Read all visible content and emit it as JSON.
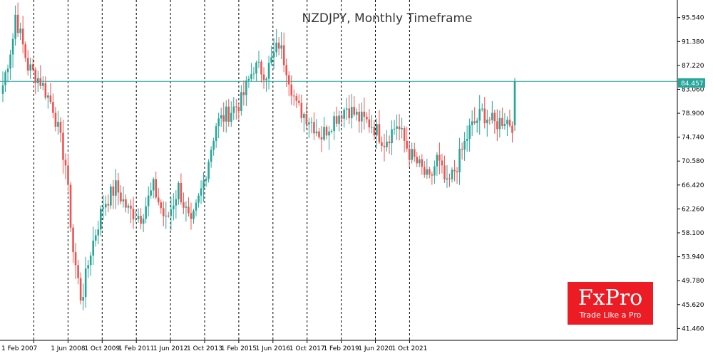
{
  "chart_data": {
    "type": "candlestick",
    "title": "NZDJPY, Monthly Timeframe",
    "xlabel": "",
    "ylabel": "",
    "ylim": [
      39.4,
      98.6
    ],
    "yticks": [
      "95.540",
      "91.380",
      "87.220",
      "83.060",
      "78.900",
      "74.740",
      "70.580",
      "66.420",
      "62.260",
      "58.100",
      "53.940",
      "49.780",
      "45.620",
      "41.460"
    ],
    "xticks": [
      "1 Feb 2007",
      "1 Jun 2008",
      "1 Oct 2009",
      "1 Feb 2011",
      "1 Jun 2012",
      "1 Oct 2013",
      "1 Feb 2015",
      "1 Jun 2016",
      "1 Oct 2017",
      "1 Feb 2019",
      "1 Jun 2020",
      "1 Oct 2021"
    ],
    "current_price": "84.457",
    "current_value": 84.457,
    "grid": "vertical dashed",
    "colors": {
      "up": "#26a69a",
      "down": "#ef5350",
      "level": "#26a69a"
    },
    "ohlc_key_points": [
      {
        "i": 0,
        "c": 83.8
      },
      {
        "i": 4,
        "c": 92.0
      },
      {
        "i": 5,
        "c": 96.0
      },
      {
        "i": 10,
        "c": 87.0
      },
      {
        "i": 15,
        "c": 84.5
      },
      {
        "i": 20,
        "c": 80.0
      },
      {
        "i": 25,
        "c": 70.0
      },
      {
        "i": 28,
        "c": 55.0
      },
      {
        "i": 31,
        "c": 47.0
      },
      {
        "i": 32,
        "c": 48.0
      },
      {
        "i": 35,
        "c": 55.0
      },
      {
        "i": 40,
        "c": 63.0
      },
      {
        "i": 45,
        "c": 66.0
      },
      {
        "i": 50,
        "c": 62.0
      },
      {
        "i": 55,
        "c": 61.0
      },
      {
        "i": 60,
        "c": 66.0
      },
      {
        "i": 65,
        "c": 60.0
      },
      {
        "i": 70,
        "c": 66.0
      },
      {
        "i": 75,
        "c": 59.0
      },
      {
        "i": 80,
        "c": 67.0
      },
      {
        "i": 85,
        "c": 77.0
      },
      {
        "i": 90,
        "c": 79.0
      },
      {
        "i": 95,
        "c": 81.0
      },
      {
        "i": 100,
        "c": 87.0
      },
      {
        "i": 105,
        "c": 86.0
      },
      {
        "i": 110,
        "c": 91.0
      },
      {
        "i": 113,
        "c": 87.0
      },
      {
        "i": 117,
        "c": 80.0
      },
      {
        "i": 122,
        "c": 78.0
      },
      {
        "i": 127,
        "c": 75.0
      },
      {
        "i": 132,
        "c": 78.0
      },
      {
        "i": 137,
        "c": 80.0
      },
      {
        "i": 142,
        "c": 78.0
      },
      {
        "i": 147,
        "c": 77.0
      },
      {
        "i": 152,
        "c": 74.0
      },
      {
        "i": 157,
        "c": 77.0
      },
      {
        "i": 162,
        "c": 72.0
      },
      {
        "i": 167,
        "c": 69.0
      },
      {
        "i": 170,
        "c": 67.0
      },
      {
        "i": 173,
        "c": 71.0
      },
      {
        "i": 177,
        "c": 66.0
      },
      {
        "i": 181,
        "c": 70.0
      },
      {
        "i": 186,
        "c": 76.0
      },
      {
        "i": 191,
        "c": 79.0
      },
      {
        "i": 196,
        "c": 77.0
      },
      {
        "i": 200,
        "c": 78.0
      },
      {
        "i": 203,
        "c": 77.0
      },
      {
        "i": 204,
        "c": 84.457
      }
    ]
  },
  "brand": {
    "name": "FxPro",
    "tagline": "Trade Like a Pro"
  }
}
